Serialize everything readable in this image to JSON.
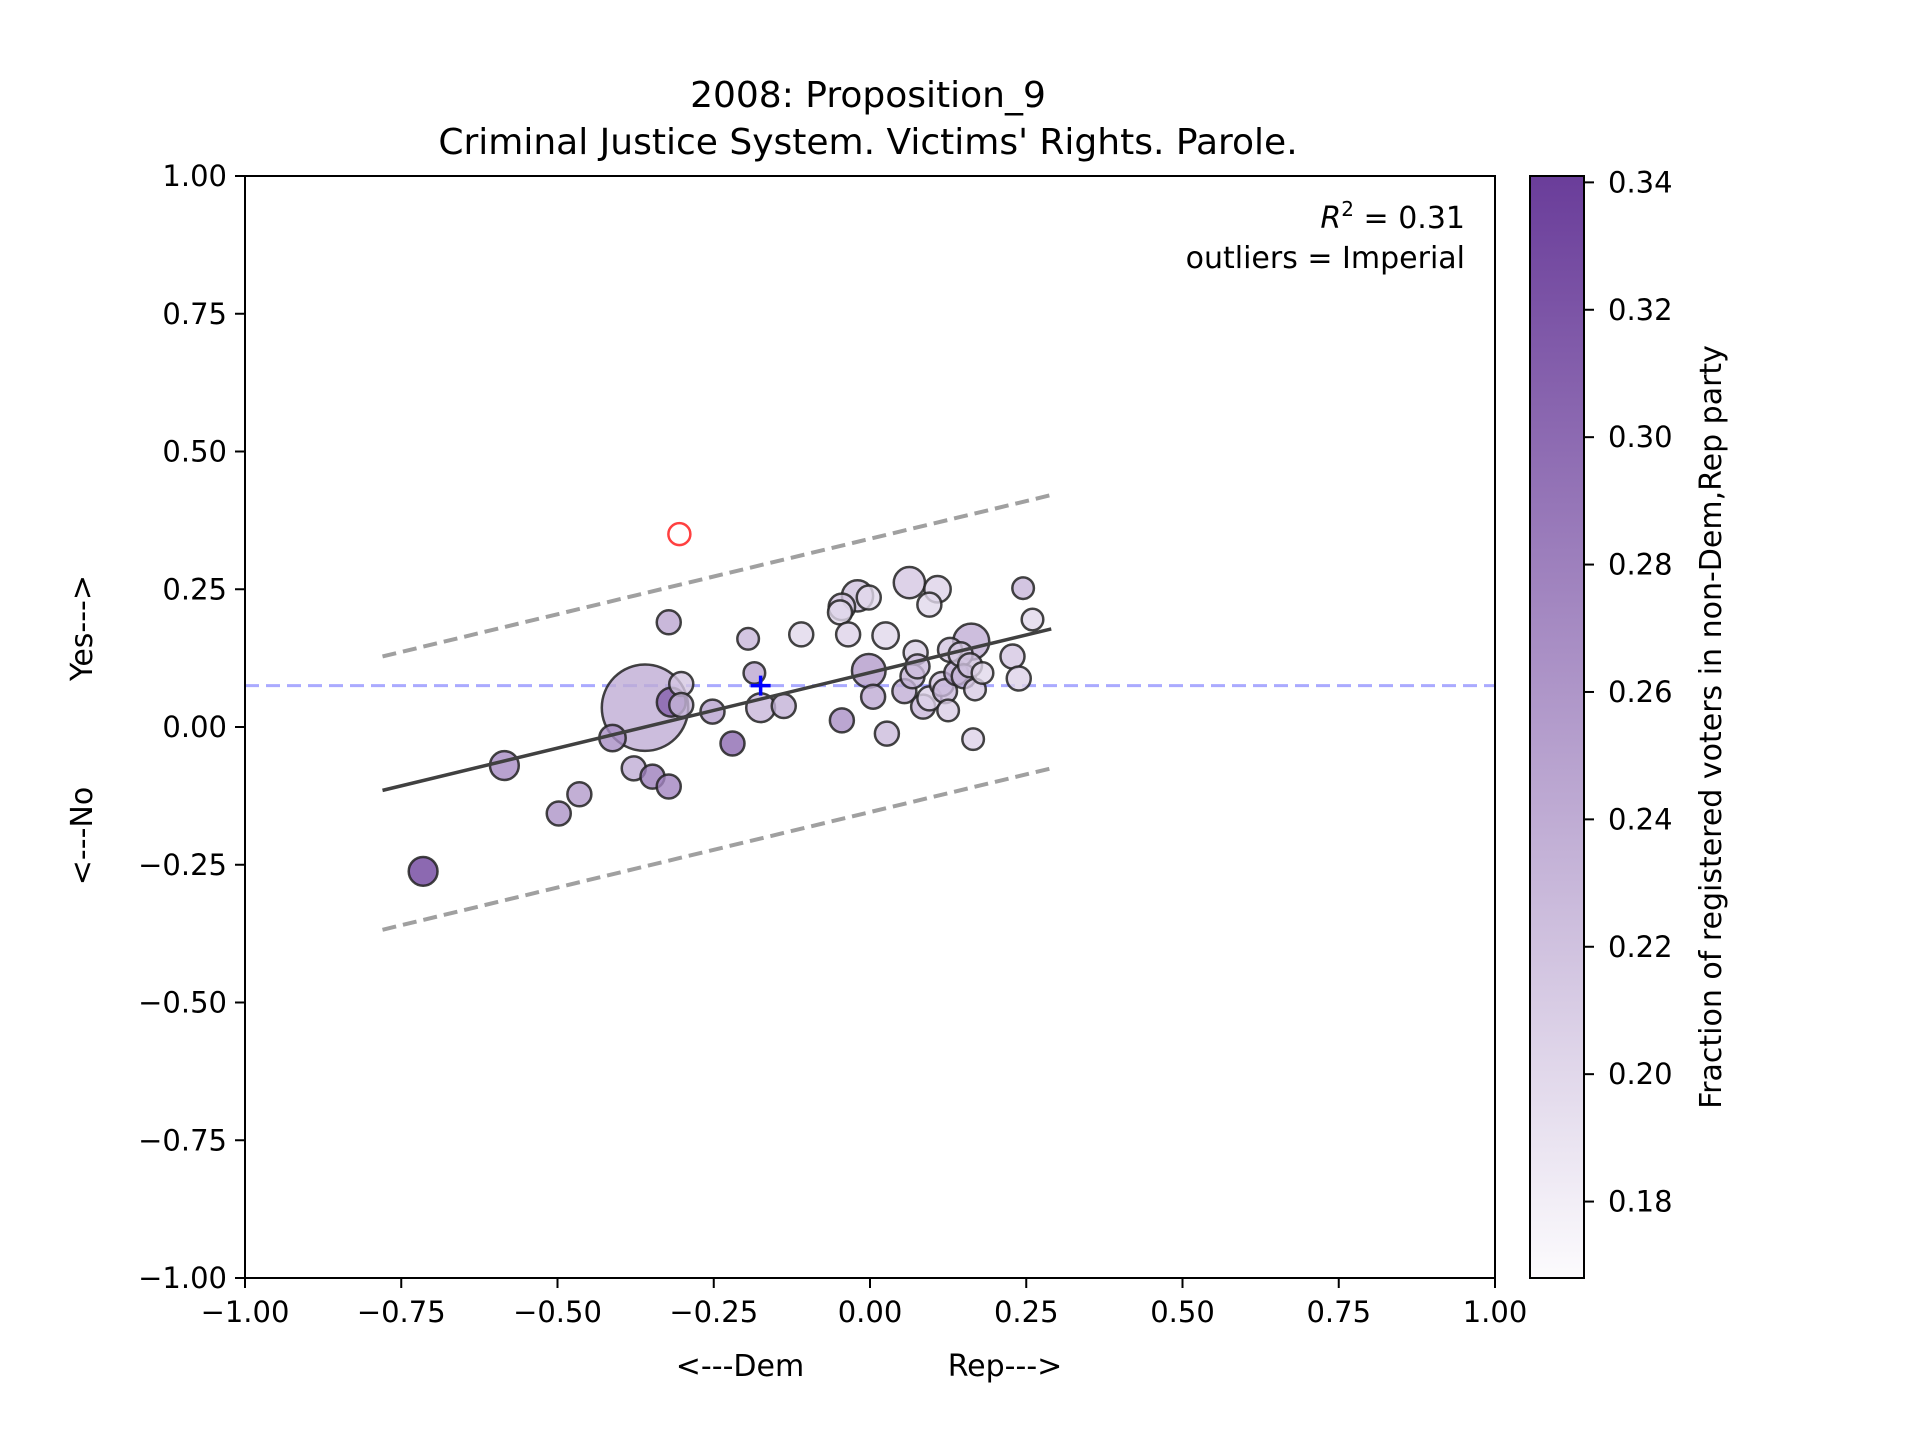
{
  "chart_data": {
    "type": "scatter",
    "title_line1": "2008: Proposition_9",
    "title_line2": "Criminal Justice System. Victims' Rights. Parole.",
    "xlabel_left": "<---Dem",
    "xlabel_right": "Rep--->",
    "ylabel_bottom": "<---No",
    "ylabel_top": "Yes--->",
    "xlim": [
      -1.0,
      1.0
    ],
    "ylim": [
      -1.0,
      1.0
    ],
    "xticks": [
      "−1.00",
      "−0.75",
      "−0.50",
      "−0.25",
      "0.00",
      "0.25",
      "0.50",
      "0.75",
      "1.00"
    ],
    "xtick_values": [
      -1.0,
      -0.75,
      -0.5,
      -0.25,
      0.0,
      0.25,
      0.5,
      0.75,
      1.0
    ],
    "yticks": [
      "−1.00",
      "−0.75",
      "−0.50",
      "−0.25",
      "0.00",
      "0.25",
      "0.50",
      "0.75",
      "1.00"
    ],
    "ytick_values": [
      -1.0,
      -0.75,
      -0.5,
      -0.25,
      0.0,
      0.25,
      0.5,
      0.75,
      1.0
    ],
    "annotation_r2_symbol": "R",
    "annotation_r2_exp": "2",
    "annotation_r2_value": " = 0.31",
    "annotation_outliers": "outliers = Imperial",
    "colorbar_label": "Fraction of registered voters in non-Dem,Rep party",
    "colorbar_ticks": [
      "0.18",
      "0.20",
      "0.22",
      "0.24",
      "0.26",
      "0.28",
      "0.30",
      "0.32",
      "0.34"
    ],
    "colorbar_tick_values": [
      0.18,
      0.2,
      0.22,
      0.24,
      0.26,
      0.28,
      0.3,
      0.32,
      0.34
    ],
    "colorbar_range": [
      0.168,
      0.341
    ],
    "colors": {
      "low": "#fcfbfd",
      "high": "#6a3d9a",
      "regression": "#404040",
      "band": "#a0a0a0",
      "mean_line": "#aaaaff",
      "mean_marker": "#0000ff",
      "outlier": "#ff4040"
    },
    "regression_line": {
      "x": [
        -0.78,
        0.29
      ],
      "y": [
        -0.115,
        0.178
      ]
    },
    "upper_band": {
      "x": [
        -0.78,
        0.29
      ],
      "y": [
        0.128,
        0.421
      ]
    },
    "lower_band": {
      "x": [
        -0.78,
        0.29
      ],
      "y": [
        -0.368,
        -0.075
      ]
    },
    "mean_line_y": 0.075,
    "mean_marker": {
      "x": -0.175,
      "y": 0.075
    },
    "outliers": [
      {
        "x": -0.305,
        "y": 0.35
      }
    ],
    "points": [
      {
        "x": -0.36,
        "y": 0.035,
        "s": 3.6,
        "c": 0.24
      },
      {
        "x": -0.715,
        "y": -0.262,
        "s": 1.2,
        "c": 0.335
      },
      {
        "x": -0.585,
        "y": -0.07,
        "s": 1.2,
        "c": 0.27
      },
      {
        "x": -0.498,
        "y": -0.157,
        "s": 1.0,
        "c": 0.262
      },
      {
        "x": -0.465,
        "y": -0.122,
        "s": 1.0,
        "c": 0.255
      },
      {
        "x": -0.412,
        "y": -0.02,
        "s": 1.1,
        "c": 0.268
      },
      {
        "x": -0.378,
        "y": -0.075,
        "s": 1.0,
        "c": 0.24
      },
      {
        "x": -0.348,
        "y": -0.09,
        "s": 1.0,
        "c": 0.282
      },
      {
        "x": -0.322,
        "y": -0.108,
        "s": 1.0,
        "c": 0.275
      },
      {
        "x": -0.322,
        "y": 0.19,
        "s": 1.0,
        "c": 0.245
      },
      {
        "x": -0.318,
        "y": 0.045,
        "s": 1.2,
        "c": 0.31
      },
      {
        "x": -0.302,
        "y": 0.078,
        "s": 1.0,
        "c": 0.215
      },
      {
        "x": -0.302,
        "y": 0.04,
        "s": 1.0,
        "c": 0.232
      },
      {
        "x": -0.252,
        "y": 0.028,
        "s": 1.0,
        "c": 0.25
      },
      {
        "x": -0.22,
        "y": -0.03,
        "s": 1.0,
        "c": 0.3
      },
      {
        "x": -0.195,
        "y": 0.16,
        "s": 0.9,
        "c": 0.23
      },
      {
        "x": -0.185,
        "y": 0.098,
        "s": 0.9,
        "c": 0.245
      },
      {
        "x": -0.175,
        "y": 0.035,
        "s": 1.2,
        "c": 0.23
      },
      {
        "x": -0.138,
        "y": 0.038,
        "s": 1.0,
        "c": 0.235
      },
      {
        "x": -0.11,
        "y": 0.168,
        "s": 1.0,
        "c": 0.2
      },
      {
        "x": -0.048,
        "y": 0.208,
        "s": 1.0,
        "c": 0.2
      },
      {
        "x": -0.045,
        "y": 0.218,
        "s": 1.1,
        "c": 0.215
      },
      {
        "x": -0.045,
        "y": 0.012,
        "s": 1.0,
        "c": 0.265
      },
      {
        "x": -0.035,
        "y": 0.168,
        "s": 1.0,
        "c": 0.205
      },
      {
        "x": -0.02,
        "y": 0.238,
        "s": 1.3,
        "c": 0.22
      },
      {
        "x": -0.002,
        "y": 0.235,
        "s": 1.0,
        "c": 0.2
      },
      {
        "x": -0.002,
        "y": 0.102,
        "s": 1.4,
        "c": 0.255
      },
      {
        "x": 0.005,
        "y": 0.055,
        "s": 1.0,
        "c": 0.242
      },
      {
        "x": 0.025,
        "y": 0.166,
        "s": 1.1,
        "c": 0.2
      },
      {
        "x": 0.027,
        "y": -0.012,
        "s": 1.0,
        "c": 0.225
      },
      {
        "x": 0.055,
        "y": 0.065,
        "s": 1.0,
        "c": 0.238
      },
      {
        "x": 0.063,
        "y": 0.262,
        "s": 1.3,
        "c": 0.215
      },
      {
        "x": 0.068,
        "y": 0.092,
        "s": 1.0,
        "c": 0.232
      },
      {
        "x": 0.073,
        "y": 0.135,
        "s": 1.0,
        "c": 0.208
      },
      {
        "x": 0.076,
        "y": 0.11,
        "s": 1.0,
        "c": 0.225
      },
      {
        "x": 0.085,
        "y": 0.037,
        "s": 1.0,
        "c": 0.23
      },
      {
        "x": 0.095,
        "y": 0.052,
        "s": 1.0,
        "c": 0.205
      },
      {
        "x": 0.095,
        "y": 0.222,
        "s": 1.0,
        "c": 0.2
      },
      {
        "x": 0.108,
        "y": 0.25,
        "s": 1.1,
        "c": 0.205
      },
      {
        "x": 0.115,
        "y": 0.078,
        "s": 1.0,
        "c": 0.215
      },
      {
        "x": 0.12,
        "y": 0.065,
        "s": 1.0,
        "c": 0.228
      },
      {
        "x": 0.125,
        "y": 0.03,
        "s": 0.9,
        "c": 0.21
      },
      {
        "x": 0.128,
        "y": 0.14,
        "s": 1.0,
        "c": 0.218
      },
      {
        "x": 0.138,
        "y": 0.098,
        "s": 1.0,
        "c": 0.24
      },
      {
        "x": 0.145,
        "y": 0.132,
        "s": 1.0,
        "c": 0.212
      },
      {
        "x": 0.15,
        "y": 0.092,
        "s": 1.0,
        "c": 0.232
      },
      {
        "x": 0.16,
        "y": 0.112,
        "s": 1.0,
        "c": 0.22
      },
      {
        "x": 0.162,
        "y": 0.155,
        "s": 1.5,
        "c": 0.238
      },
      {
        "x": 0.165,
        "y": -0.022,
        "s": 0.9,
        "c": 0.205
      },
      {
        "x": 0.168,
        "y": 0.068,
        "s": 0.9,
        "c": 0.212
      },
      {
        "x": 0.18,
        "y": 0.098,
        "s": 0.9,
        "c": 0.2
      },
      {
        "x": 0.228,
        "y": 0.128,
        "s": 1.0,
        "c": 0.215
      },
      {
        "x": 0.238,
        "y": 0.088,
        "s": 1.0,
        "c": 0.205
      },
      {
        "x": 0.245,
        "y": 0.252,
        "s": 0.9,
        "c": 0.23
      },
      {
        "x": 0.26,
        "y": 0.195,
        "s": 0.9,
        "c": 0.2
      }
    ]
  }
}
